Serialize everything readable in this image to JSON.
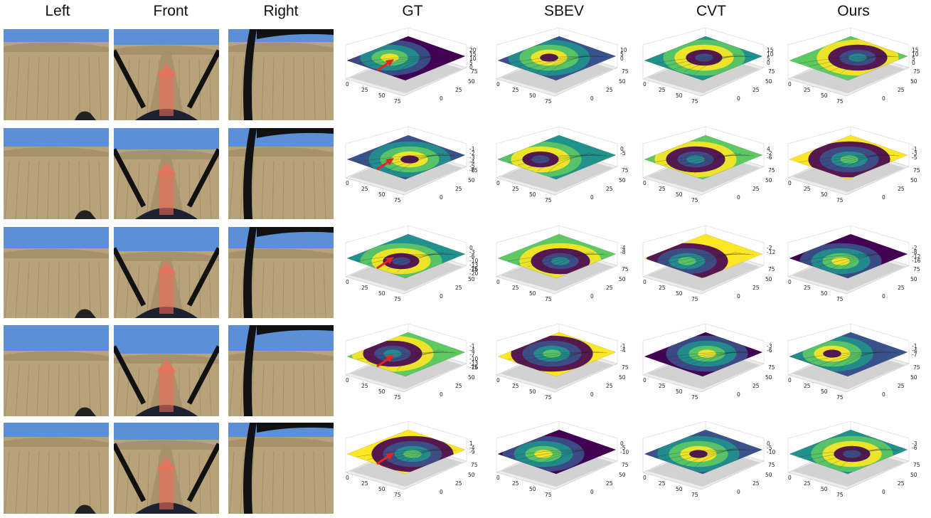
{
  "column_headers": [
    "Left",
    "Front",
    "Right",
    "GT",
    "SBEV",
    "CVT",
    "Ours"
  ],
  "tick_labels": [
    "0",
    "25",
    "50",
    "75"
  ],
  "rows": [
    {
      "z_ticks": {
        "GT": [
          "20",
          "15",
          "10",
          "5",
          "0"
        ],
        "SBEV": [
          "10",
          "5",
          "0"
        ],
        "CVT": [
          "15",
          "10",
          "5",
          "0"
        ],
        "Ours": [
          "15",
          "10",
          "5",
          "0"
        ]
      }
    },
    {
      "z_ticks": {
        "GT": [
          "-1",
          "-2",
          "-3",
          "-4",
          "-5",
          "-6"
        ],
        "SBEV": [
          "0",
          "-5"
        ],
        "CVT": [
          "4",
          "-2",
          "-6"
        ],
        "Ours": [
          "-1",
          "-3",
          "-5"
        ]
      }
    },
    {
      "z_ticks": {
        "GT": [
          "0",
          "-3",
          "-6",
          "-10",
          "-13",
          "-16",
          "-20"
        ],
        "SBEV": [
          "-4",
          "-8"
        ],
        "CVT": [
          "-2",
          "-12"
        ],
        "Ours": [
          "-2",
          "-8",
          "-12",
          "-16"
        ]
      }
    },
    {
      "z_ticks": {
        "GT": [
          "-1",
          "-4",
          "-7",
          "-10",
          "-13",
          "-16"
        ],
        "SBEV": [
          "-1",
          "-4"
        ],
        "CVT": [
          "-3",
          "-6"
        ],
        "Ours": [
          "-1",
          "-4",
          "-7"
        ]
      }
    },
    {
      "z_ticks": {
        "GT": [
          "1",
          "-4",
          "-9"
        ],
        "SBEV": [
          "0",
          "-5",
          "-10"
        ],
        "CVT": [
          "0",
          "-5",
          "-10"
        ],
        "Ours": [
          "-3",
          "-6"
        ]
      }
    }
  ],
  "colors": {
    "viridis": [
      "#440154",
      "#3b528b",
      "#21918c",
      "#5ec962",
      "#fde725"
    ],
    "arrow": "#e3261f",
    "front_arrow": "#f06d5a",
    "sky": "#5b8fd6",
    "grass": "#b8a27a"
  }
}
